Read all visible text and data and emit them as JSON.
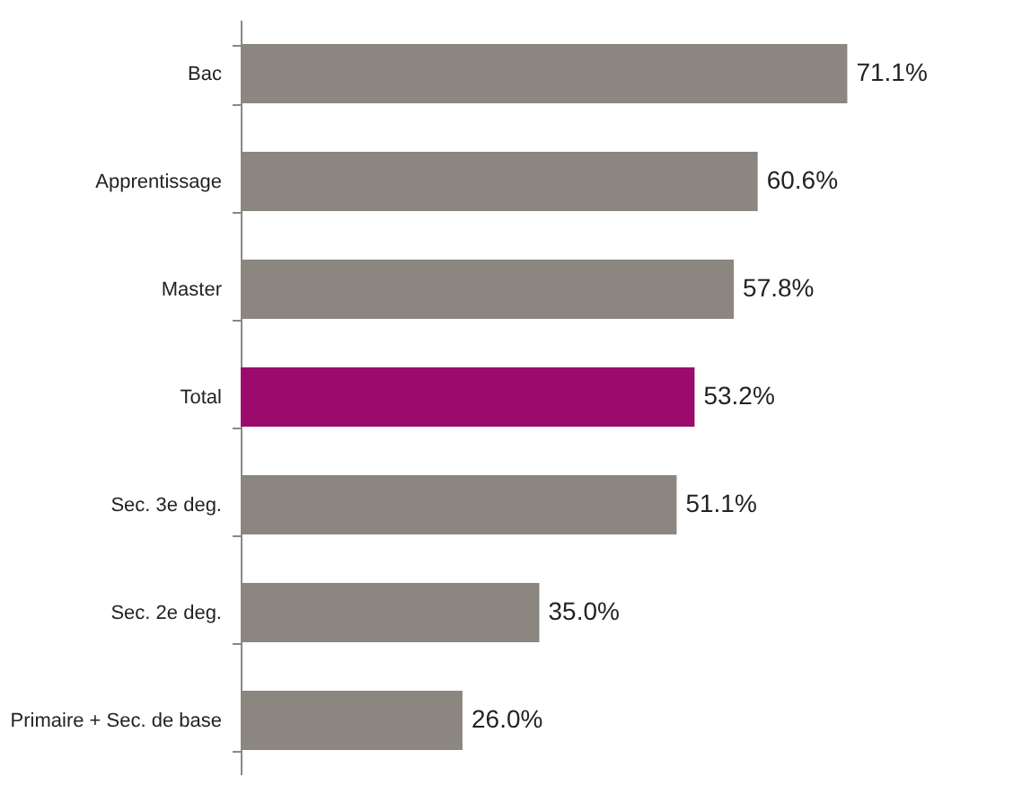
{
  "chart_data": {
    "type": "bar",
    "orientation": "horizontal",
    "categories": [
      "Bac",
      "Apprentissage",
      "Master",
      "Total",
      "Sec. 3e deg.",
      "Sec. 2e deg.",
      "Primaire + Sec. de base"
    ],
    "values": [
      71.1,
      60.6,
      57.8,
      53.2,
      51.1,
      35.0,
      26.0
    ],
    "value_labels": [
      "71.1%",
      "60.6%",
      "57.8%",
      "53.2%",
      "51.1%",
      "35.0%",
      "26.0%"
    ],
    "colors": [
      "#8c8681",
      "#8c8681",
      "#8c8681",
      "#9c0a6c",
      "#8c8681",
      "#8c8681",
      "#8c8681"
    ],
    "grid": false
  }
}
